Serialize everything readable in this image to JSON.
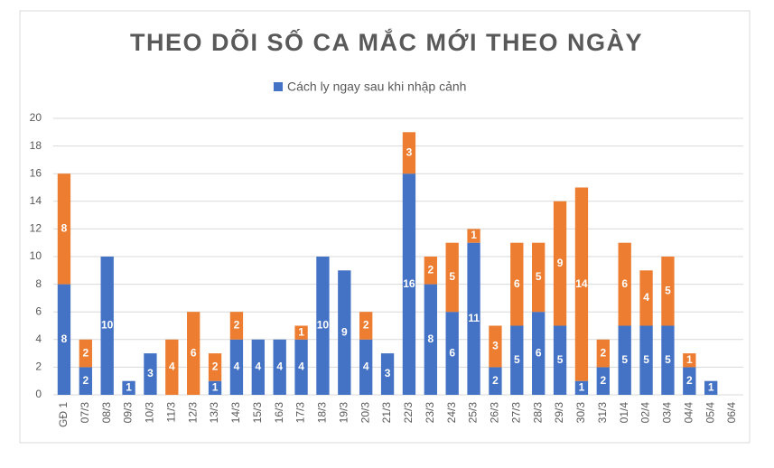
{
  "chart_data": {
    "type": "stacked_bar",
    "title": "THEO DÕI SỐ CA MẮC MỚI THEO NGÀY",
    "categories": [
      "GĐ 1",
      "07/3",
      "08/3",
      "09/3",
      "10/3",
      "11/3",
      "12/3",
      "13/3",
      "14/3",
      "15/3",
      "16/3",
      "17/3",
      "18/3",
      "19/3",
      "20/3",
      "21/3",
      "22/3",
      "23/3",
      "24/3",
      "25/3",
      "26/3",
      "27/3",
      "28/3",
      "29/3",
      "30/3",
      "31/3",
      "01/4",
      "02/4",
      "03/4",
      "04/4",
      "05/4",
      "06/4"
    ],
    "series": [
      {
        "name": "Cách ly ngay sau khi nhập cảnh",
        "color": "#4472c4",
        "values": [
          8,
          2,
          10,
          1,
          3,
          0,
          0,
          1,
          4,
          4,
          4,
          4,
          10,
          9,
          4,
          3,
          16,
          8,
          6,
          11,
          2,
          5,
          6,
          5,
          1,
          2,
          5,
          5,
          5,
          2,
          1,
          0
        ]
      },
      {
        "color": "#ed7d31",
        "values": [
          8,
          2,
          0,
          0,
          0,
          4,
          6,
          2,
          2,
          0,
          0,
          1,
          0,
          0,
          2,
          0,
          3,
          2,
          5,
          1,
          3,
          6,
          5,
          9,
          14,
          2,
          6,
          4,
          5,
          1,
          0,
          0
        ]
      }
    ],
    "ylim": [
      0,
      20
    ],
    "yticks": [
      0,
      2,
      4,
      6,
      8,
      10,
      12,
      14,
      16,
      18,
      20
    ],
    "grid": true,
    "legend": "top"
  }
}
